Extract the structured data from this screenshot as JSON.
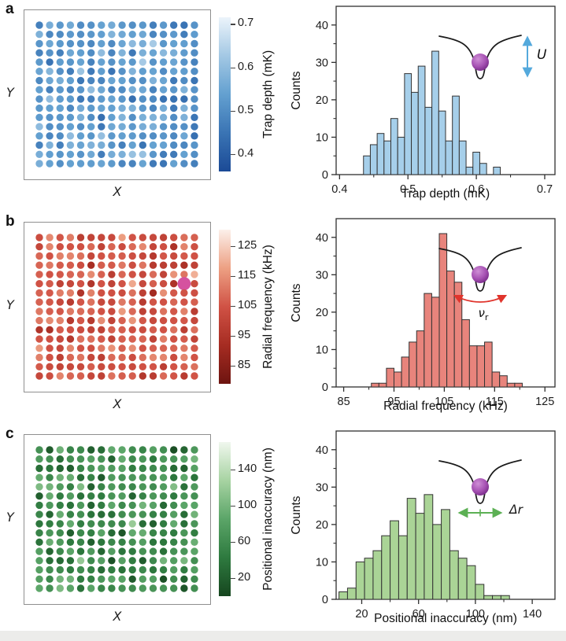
{
  "figure": {
    "background": "#ffffff",
    "footer_strip_color": "#ececea"
  },
  "chart_data": [
    {
      "panel_label": "a",
      "dot_grid": {
        "type": "scatter",
        "subtype": "dot-grid",
        "xlabel": "X",
        "ylabel": "Y",
        "cols": 16,
        "rows": 16,
        "values_sampled_from": "histogram",
        "seed": 11,
        "highlight": null
      },
      "colorbar": {
        "label": "Trap depth (mK)",
        "range": [
          0.36,
          0.715
        ],
        "ticks": [
          0.4,
          0.5,
          0.6,
          0.7
        ],
        "tick_labels": [
          "0.4",
          "0.5",
          "0.6",
          "0.7"
        ],
        "stops_dark_to_light": [
          "#1b4a96",
          "#3a74b4",
          "#63a0d0",
          "#a3c8e4",
          "#ecf4fb"
        ]
      },
      "histogram": {
        "type": "bar",
        "subtype": "histogram",
        "xlabel": "Trap depth (mK)",
        "ylabel": "Counts",
        "bin_start": 0.435,
        "bin_width": 0.01,
        "counts": [
          5,
          8,
          11,
          9,
          15,
          10,
          27,
          22,
          29,
          18,
          33,
          17,
          9,
          21,
          9,
          2,
          6,
          3,
          0,
          2
        ],
        "x_range": [
          0.395,
          0.715
        ],
        "x_ticks": [
          0.4,
          0.5,
          0.6,
          0.7
        ],
        "x_tick_labels": [
          "0.4",
          "0.5",
          "0.6",
          "0.7"
        ],
        "x_minor_ticks": [
          0.45,
          0.55,
          0.65
        ],
        "y_range": [
          0,
          45
        ],
        "y_ticks": [
          0,
          10,
          20,
          30,
          40
        ],
        "y_tick_labels": [
          "0",
          "10",
          "20",
          "30",
          "40"
        ],
        "y_minor_ticks": [
          5,
          15,
          25,
          35
        ],
        "bar_fill": "#a6cfea",
        "bar_edge": "#333333"
      },
      "inset": {
        "type": "vertical-arrow",
        "arrow_color": "#54a9dc",
        "label_main": "U",
        "label_sub": "",
        "ball_color": "#a753b4",
        "curve_color": "#1a1a1a"
      }
    },
    {
      "panel_label": "b",
      "dot_grid": {
        "type": "scatter",
        "subtype": "dot-grid",
        "xlabel": "X",
        "ylabel": "Y",
        "cols": 16,
        "rows": 16,
        "values_sampled_from": "histogram",
        "seed": 22,
        "highlight": {
          "row": 5,
          "col": 14,
          "color": "#d5529f",
          "radius": 8.4
        }
      },
      "colorbar": {
        "label": "Radial frequency (kHz)",
        "range": [
          79,
          130.5
        ],
        "ticks": [
          85,
          95,
          105,
          115,
          125
        ],
        "tick_labels": [
          "85",
          "95",
          "105",
          "115",
          "125"
        ],
        "stops_dark_to_light": [
          "#6d1410",
          "#a62c22",
          "#d05245",
          "#eda083",
          "#fcf0ea"
        ]
      },
      "histogram": {
        "type": "bar",
        "subtype": "histogram",
        "xlabel": "Radial frequency (kHz)",
        "ylabel": "Counts",
        "bin_start": 90.5,
        "bin_width": 1.5,
        "counts": [
          1,
          1,
          5,
          4,
          8,
          12,
          15,
          25,
          24,
          41,
          31,
          28,
          18,
          11,
          11,
          12,
          4,
          3,
          1,
          1
        ],
        "x_range": [
          83.5,
          127
        ],
        "x_ticks": [
          85,
          95,
          105,
          115,
          125
        ],
        "x_tick_labels": [
          "85",
          "95",
          "105",
          "115",
          "125"
        ],
        "x_minor_ticks": [
          90,
          100,
          110,
          120
        ],
        "y_range": [
          0,
          45
        ],
        "y_ticks": [
          0,
          10,
          20,
          30,
          40
        ],
        "y_tick_labels": [
          "0",
          "10",
          "20",
          "30",
          "40"
        ],
        "y_minor_ticks": [
          5,
          15,
          25,
          35
        ],
        "bar_fill": "#e8847c",
        "bar_edge": "#333333"
      },
      "inset": {
        "type": "arc-arrow",
        "arrow_color": "#e0342c",
        "label_main": "ν",
        "label_sub": "r",
        "ball_color": "#a753b4",
        "curve_color": "#1a1a1a"
      }
    },
    {
      "panel_label": "c",
      "dot_grid": {
        "type": "scatter",
        "subtype": "dot-grid",
        "xlabel": "X",
        "ylabel": "Y",
        "cols": 16,
        "rows": 16,
        "values_sampled_from": "histogram",
        "seed": 33,
        "highlight": null
      },
      "colorbar": {
        "label": "Positional inaccuracy (nm)",
        "range": [
          0,
          170
        ],
        "ticks": [
          20,
          60,
          100,
          140
        ],
        "tick_labels": [
          "20",
          "60",
          "100",
          "140"
        ],
        "stops_dark_to_light": [
          "#16461f",
          "#2e7a3f",
          "#5ba568",
          "#a7d3a2",
          "#f0f7ee"
        ]
      },
      "histogram": {
        "type": "bar",
        "subtype": "histogram",
        "xlabel": "Positional inaccuracy (nm)",
        "ylabel": "Counts",
        "bin_start": 4,
        "bin_width": 6,
        "counts": [
          2,
          3,
          10,
          11,
          13,
          17,
          21,
          17,
          27,
          23,
          28,
          20,
          24,
          13,
          11,
          9,
          4,
          1,
          1,
          1
        ],
        "x_range": [
          2,
          156
        ],
        "x_ticks": [
          20,
          60,
          100,
          140
        ],
        "x_tick_labels": [
          "20",
          "60",
          "100",
          "140"
        ],
        "x_minor_ticks": [
          40,
          80,
          120
        ],
        "y_range": [
          0,
          45
        ],
        "y_ticks": [
          0,
          10,
          20,
          30,
          40
        ],
        "y_tick_labels": [
          "0",
          "10",
          "20",
          "30",
          "40"
        ],
        "y_minor_ticks": [
          5,
          15,
          25,
          35
        ],
        "bar_fill": "#aad496",
        "bar_edge": "#333333"
      },
      "inset": {
        "type": "horizontal-arrow",
        "arrow_color": "#5cb054",
        "label_main": "Δr",
        "label_sub": "",
        "ball_color": "#a753b4",
        "curve_color": "#1a1a1a"
      }
    }
  ]
}
